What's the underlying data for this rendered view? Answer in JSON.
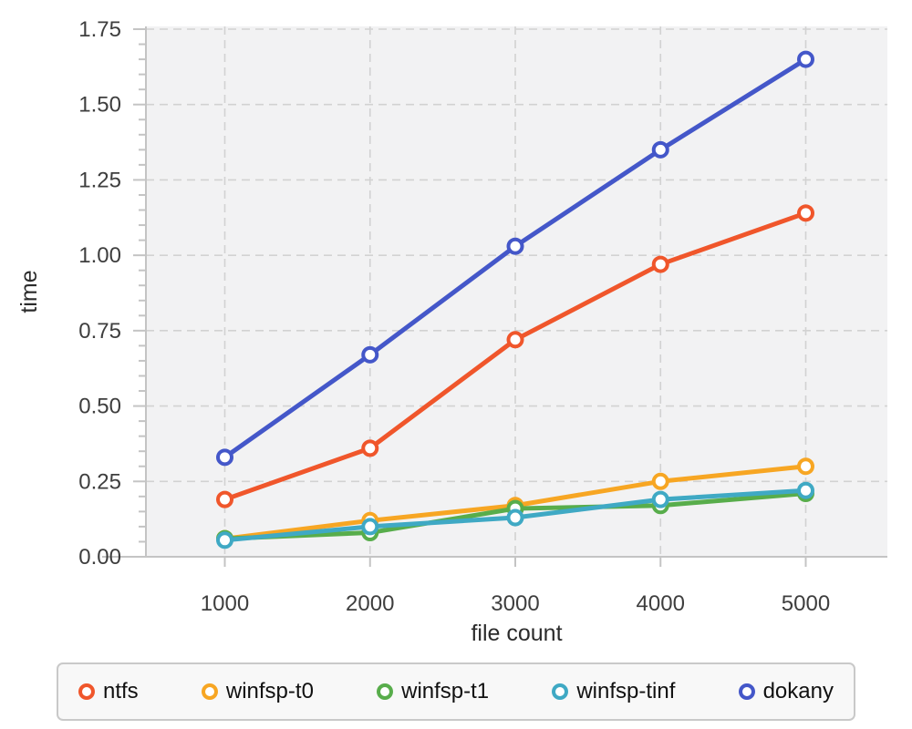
{
  "chart_data": {
    "type": "line",
    "title": "",
    "xlabel": "file count",
    "ylabel": "time",
    "x": [
      1000,
      2000,
      3000,
      4000,
      5000
    ],
    "x_tick_labels": [
      "1000",
      "2000",
      "3000",
      "4000",
      "5000"
    ],
    "ylim": [
      0,
      1.75
    ],
    "y_major_step": 0.25,
    "y_minor_step": 0.05,
    "y_tick_labels": [
      "0.00",
      "0.25",
      "0.50",
      "0.75",
      "1.00",
      "1.25",
      "1.50",
      "1.75"
    ],
    "grid": true,
    "grid_style": "dashed",
    "legend_position": "bottom",
    "plot_background": "#f2f2f3",
    "grid_color": "#d2d2d2",
    "axis_color": "#c4c4c4",
    "tick_label_color": "#3e3e3e",
    "axis_title_color": "#2b2b2b",
    "series": [
      {
        "name": "ntfs",
        "color": "#f0562b",
        "values": [
          0.19,
          0.36,
          0.72,
          0.97,
          1.14
        ]
      },
      {
        "name": "winfsp-t0",
        "color": "#f7a623",
        "values": [
          0.06,
          0.12,
          0.17,
          0.25,
          0.3
        ]
      },
      {
        "name": "winfsp-t1",
        "color": "#58ad4b",
        "values": [
          0.06,
          0.08,
          0.16,
          0.17,
          0.21
        ]
      },
      {
        "name": "winfsp-tinf",
        "color": "#3fa9c4",
        "values": [
          0.055,
          0.1,
          0.13,
          0.19,
          0.22
        ]
      },
      {
        "name": "dokany",
        "color": "#4457c9",
        "values": [
          0.33,
          0.67,
          1.03,
          1.35,
          1.65
        ]
      }
    ]
  }
}
